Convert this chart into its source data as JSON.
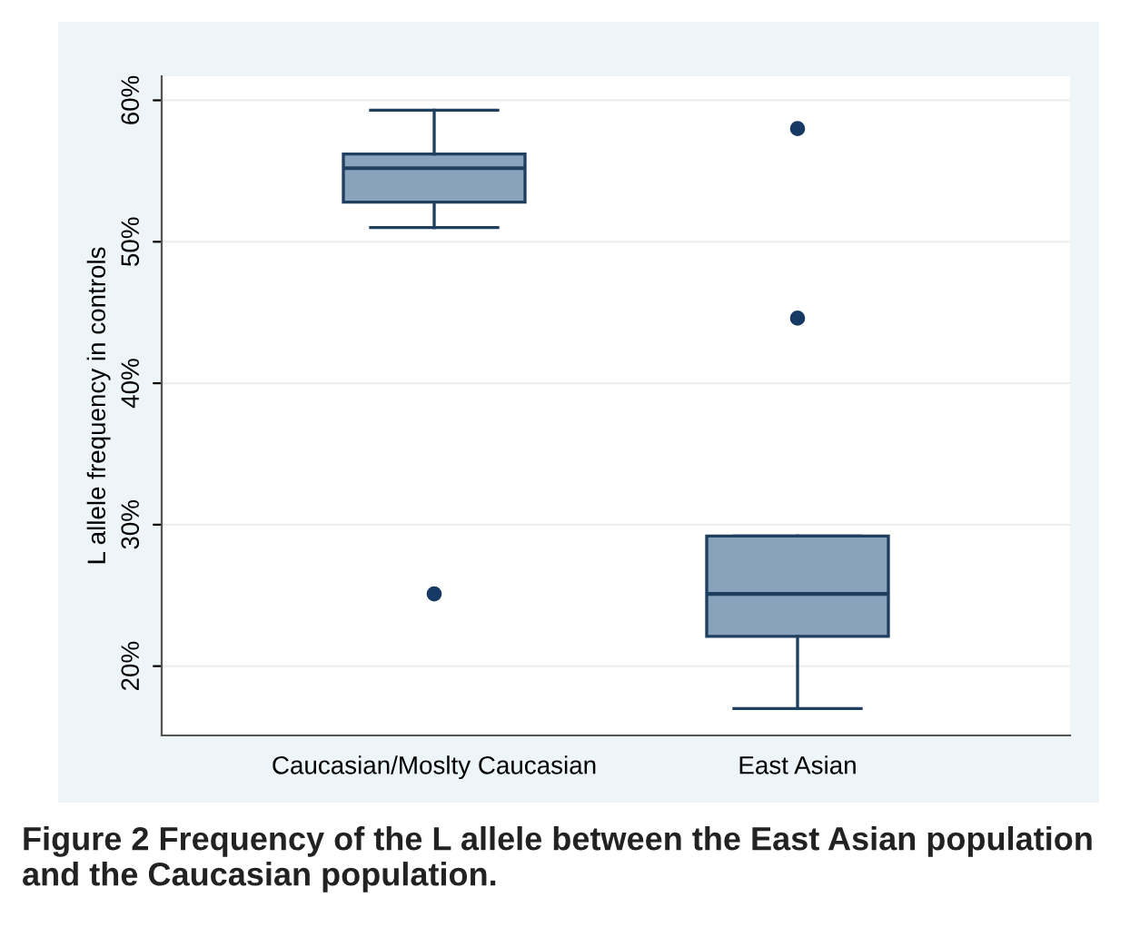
{
  "chart_data": {
    "type": "box",
    "ylabel": "L allele frequency in controls",
    "categories": [
      "Caucasian/Moslty Caucasian",
      "East Asian"
    ],
    "boxes": [
      {
        "low": 51.0,
        "q1": 52.8,
        "median": 55.2,
        "q3": 56.2,
        "high": 59.3,
        "outliers": [
          25.1
        ]
      },
      {
        "low": 17.0,
        "q1": 22.1,
        "median": 25.1,
        "q3": 29.2,
        "high": 29.2,
        "outliers": [
          58.0,
          44.6
        ]
      }
    ],
    "color": "#8aa3bd",
    "ylim": [
      15.1,
      61.7
    ],
    "yticks": [
      {
        "value": 20,
        "label": "20%"
      },
      {
        "value": 30,
        "label": "30%"
      },
      {
        "value": 40,
        "label": "40%"
      },
      {
        "value": 50,
        "label": "50%"
      },
      {
        "value": 60,
        "label": "60%"
      }
    ],
    "grid": "y",
    "annotations": [
      "Figure 2 Frequency of the L allele between the East Asian population and the Caucasian population."
    ]
  }
}
